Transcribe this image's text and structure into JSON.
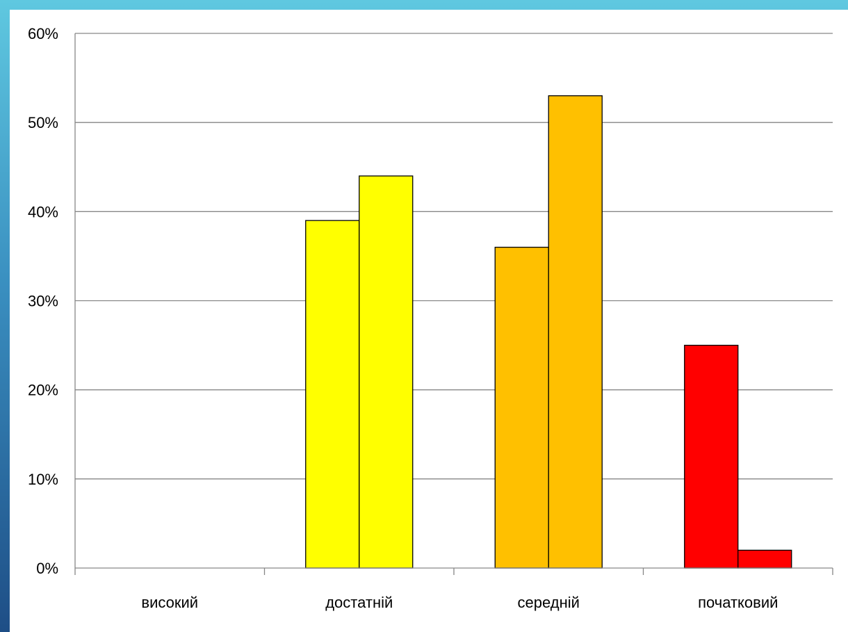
{
  "chart_data": {
    "type": "bar",
    "title": "",
    "xlabel": "",
    "ylabel": "",
    "categories": [
      "високий",
      "достатній",
      "середній",
      "початковий"
    ],
    "series": [
      {
        "values": [
          0,
          39,
          36,
          25
        ]
      },
      {
        "values": [
          0,
          44,
          53,
          2
        ]
      }
    ],
    "bar_colors": [
      "#9aa0a8",
      "#ffff00",
      "#ffc000",
      "#ff0000"
    ],
    "ylim": [
      0,
      60
    ],
    "yticks": [
      0,
      10,
      20,
      30,
      40,
      50,
      60
    ],
    "ytick_labels": [
      "0%",
      "10%",
      "20%",
      "30%",
      "40%",
      "50%",
      "60%"
    ],
    "grid": true,
    "legend": "none"
  }
}
